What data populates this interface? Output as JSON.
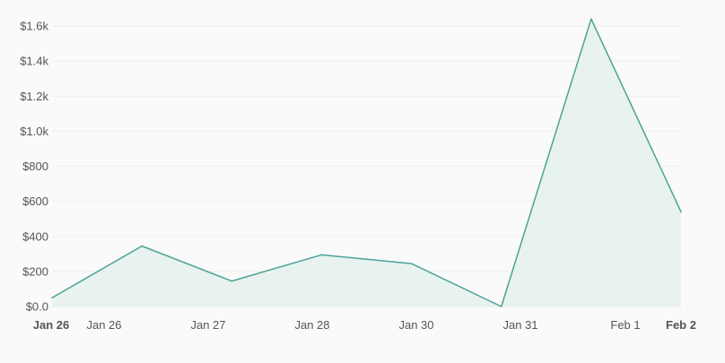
{
  "chart_data": {
    "type": "area",
    "title": "",
    "xlabel": "",
    "ylabel": "",
    "ylim": [
      0,
      1600
    ],
    "grid": true,
    "legend": "none",
    "colors": {
      "line": "#4aa397",
      "fill": "#e8f2ef",
      "grid": "#eeeeee",
      "text": "#555555"
    },
    "y_ticks": [
      "$0.0",
      "$200",
      "$400",
      "$600",
      "$800",
      "$1.0k",
      "$1.2k",
      "$1.4k",
      "$1.6k"
    ],
    "y_tick_values": [
      0,
      200,
      400,
      600,
      800,
      1000,
      1200,
      1400,
      1600
    ],
    "x_ticks": [
      {
        "label": "Jan 26",
        "bold": true
      },
      {
        "label": "Jan 26",
        "bold": false
      },
      {
        "label": "Jan 27",
        "bold": false
      },
      {
        "label": "Jan 28",
        "bold": false
      },
      {
        "label": "Jan 30",
        "bold": false
      },
      {
        "label": "Jan 31",
        "bold": false
      },
      {
        "label": "Feb 1",
        "bold": false
      },
      {
        "label": "Feb 2",
        "bold": true
      }
    ],
    "series": [
      {
        "values": [
          50,
          345,
          145,
          295,
          245,
          0,
          1640,
          540
        ]
      }
    ]
  }
}
